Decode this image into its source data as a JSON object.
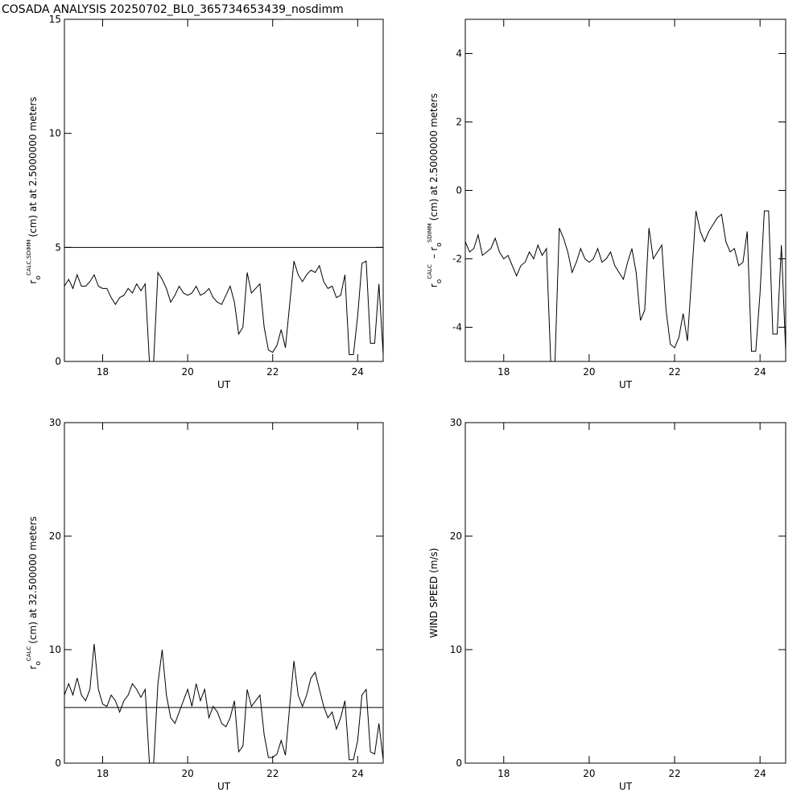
{
  "title": "COSADA ANALYSIS 20250702_BL0_365734653439_nosdimm",
  "chart_data": [
    {
      "type": "line",
      "xlabel": "UT",
      "ylabel": [
        {
          "text": "r"
        },
        {
          "text": "o",
          "style": "sub"
        },
        {
          "text": "CALC,SDIMM",
          "style": "sup"
        },
        {
          "text": "(cm) at  at 2.5000000 meters"
        }
      ],
      "x": [
        17.1,
        17.2,
        17.3,
        17.4,
        17.5,
        17.6,
        17.7,
        17.8,
        17.9,
        18.0,
        18.1,
        18.2,
        18.3,
        18.4,
        18.5,
        18.6,
        18.7,
        18.8,
        18.9,
        19.0,
        19.1,
        19.2,
        19.3,
        19.4,
        19.5,
        19.6,
        19.7,
        19.8,
        19.9,
        20.0,
        20.1,
        20.2,
        20.3,
        20.4,
        20.5,
        20.6,
        20.7,
        20.8,
        20.9,
        21.0,
        21.1,
        21.2,
        21.3,
        21.4,
        21.5,
        21.6,
        21.7,
        21.8,
        21.9,
        22.0,
        22.1,
        22.2,
        22.3,
        22.4,
        22.5,
        22.6,
        22.7,
        22.8,
        22.9,
        23.0,
        23.1,
        23.2,
        23.3,
        23.4,
        23.5,
        23.6,
        23.7,
        23.8,
        23.9,
        24.0,
        24.1,
        24.2,
        24.3,
        24.4,
        24.5,
        24.6
      ],
      "series": [
        {
          "color": "#000000",
          "values": [
            3.3,
            3.6,
            3.2,
            3.8,
            3.3,
            3.3,
            3.5,
            3.8,
            3.3,
            3.2,
            3.2,
            2.8,
            2.5,
            2.8,
            2.9,
            3.2,
            3.0,
            3.4,
            3.1,
            3.4,
            0,
            0,
            3.9,
            3.6,
            3.2,
            2.6,
            2.9,
            3.3,
            3.0,
            2.9,
            3.0,
            3.3,
            2.9,
            3.0,
            3.2,
            2.8,
            2.6,
            2.5,
            2.9,
            3.3,
            2.6,
            1.2,
            1.5,
            3.9,
            3.0,
            3.2,
            3.4,
            1.5,
            0.5,
            0.4,
            0.7,
            1.4,
            0.6,
            2.5,
            4.4,
            3.8,
            3.5,
            3.8,
            4.0,
            3.9,
            4.2,
            3.5,
            3.2,
            3.3,
            2.8,
            2.9,
            3.8,
            0.3,
            0.3,
            2.0,
            4.3,
            4.4,
            0.8,
            0.8,
            3.4,
            0.3
          ]
        }
      ],
      "hline": 5,
      "xlim": [
        17.1,
        24.6
      ],
      "ylim": [
        0,
        15
      ],
      "xticks": [
        18,
        20,
        22,
        24
      ],
      "yticks": [
        0,
        5,
        10,
        15
      ]
    },
    {
      "type": "line",
      "xlabel": "UT",
      "ylabel": [
        {
          "text": "r"
        },
        {
          "text": "o",
          "style": "sub"
        },
        {
          "text": "CALC",
          "style": "sup"
        },
        {
          "text": " – r"
        },
        {
          "text": "o",
          "style": "sub"
        },
        {
          "text": "SDIMM",
          "style": "sup"
        },
        {
          "text": "(cm) at 2.5000000 meters"
        }
      ],
      "x": [
        17.1,
        17.2,
        17.3,
        17.4,
        17.5,
        17.6,
        17.7,
        17.8,
        17.9,
        18.0,
        18.1,
        18.2,
        18.3,
        18.4,
        18.5,
        18.6,
        18.7,
        18.8,
        18.9,
        19.0,
        19.1,
        19.2,
        19.3,
        19.4,
        19.5,
        19.6,
        19.7,
        19.8,
        19.9,
        20.0,
        20.1,
        20.2,
        20.3,
        20.4,
        20.5,
        20.6,
        20.7,
        20.8,
        20.9,
        21.0,
        21.1,
        21.2,
        21.3,
        21.4,
        21.5,
        21.6,
        21.7,
        21.8,
        21.9,
        22.0,
        22.1,
        22.2,
        22.3,
        22.4,
        22.5,
        22.6,
        22.7,
        22.8,
        22.9,
        23.0,
        23.1,
        23.2,
        23.3,
        23.4,
        23.5,
        23.6,
        23.7,
        23.8,
        23.9,
        24.0,
        24.1,
        24.2,
        24.3,
        24.4,
        24.5,
        24.6
      ],
      "series": [
        {
          "color": "#000000",
          "values": [
            -1.5,
            -1.8,
            -1.7,
            -1.3,
            -1.9,
            -1.8,
            -1.7,
            -1.4,
            -1.8,
            -2.0,
            -1.9,
            -2.2,
            -2.5,
            -2.2,
            -2.1,
            -1.8,
            -2.0,
            -1.6,
            -1.9,
            -1.7,
            -5,
            -5,
            -1.1,
            -1.4,
            -1.8,
            -2.4,
            -2.1,
            -1.7,
            -2.0,
            -2.1,
            -2.0,
            -1.7,
            -2.1,
            -2.0,
            -1.8,
            -2.2,
            -2.4,
            -2.6,
            -2.1,
            -1.7,
            -2.4,
            -3.8,
            -3.5,
            -1.1,
            -2.0,
            -1.8,
            -1.6,
            -3.5,
            -4.5,
            -4.6,
            -4.3,
            -3.6,
            -4.4,
            -2.5,
            -0.6,
            -1.2,
            -1.5,
            -1.2,
            -1.0,
            -0.8,
            -0.7,
            -1.5,
            -1.8,
            -1.7,
            -2.2,
            -2.1,
            -1.2,
            -4.7,
            -4.7,
            -3.0,
            -0.6,
            -0.6,
            -4.2,
            -4.2,
            -1.6,
            -4.7
          ]
        }
      ],
      "xlim": [
        17.1,
        24.6
      ],
      "ylim": [
        -5,
        5
      ],
      "xticks": [
        18,
        20,
        22,
        24
      ],
      "yticks": [
        -4,
        -2,
        0,
        2,
        4
      ]
    },
    {
      "type": "line",
      "xlabel": "UT",
      "ylabel": [
        {
          "text": "r"
        },
        {
          "text": "o",
          "style": "sub"
        },
        {
          "text": "CALC",
          "style": "sup"
        },
        {
          "text": "(cm) at 32.500000 meters"
        }
      ],
      "x": [
        17.1,
        17.2,
        17.3,
        17.4,
        17.5,
        17.6,
        17.7,
        17.8,
        17.9,
        18.0,
        18.1,
        18.2,
        18.3,
        18.4,
        18.5,
        18.6,
        18.7,
        18.8,
        18.9,
        19.0,
        19.1,
        19.2,
        19.3,
        19.4,
        19.5,
        19.6,
        19.7,
        19.8,
        19.9,
        20.0,
        20.1,
        20.2,
        20.3,
        20.4,
        20.5,
        20.6,
        20.7,
        20.8,
        20.9,
        21.0,
        21.1,
        21.2,
        21.3,
        21.4,
        21.5,
        21.6,
        21.7,
        21.8,
        21.9,
        22.0,
        22.1,
        22.2,
        22.3,
        22.4,
        22.5,
        22.6,
        22.7,
        22.8,
        22.9,
        23.0,
        23.1,
        23.2,
        23.3,
        23.4,
        23.5,
        23.6,
        23.7,
        23.8,
        23.9,
        24.0,
        24.1,
        24.2,
        24.3,
        24.4,
        24.5,
        24.6
      ],
      "series": [
        {
          "color": "#000000",
          "values": [
            6.0,
            7.0,
            6.0,
            7.5,
            6.0,
            5.5,
            6.5,
            10.5,
            6.5,
            5.2,
            5.0,
            6.0,
            5.5,
            4.5,
            5.5,
            6.0,
            7.0,
            6.5,
            5.8,
            6.5,
            0,
            0,
            7.0,
            10.0,
            6.0,
            4.0,
            3.5,
            4.5,
            5.5,
            6.5,
            5.0,
            7.0,
            5.5,
            6.5,
            4.0,
            5.0,
            4.5,
            3.5,
            3.2,
            4.0,
            5.5,
            1.0,
            1.5,
            6.5,
            5.0,
            5.5,
            6.0,
            2.5,
            0.5,
            0.5,
            0.8,
            2.0,
            0.7,
            5.0,
            9.0,
            6.0,
            5.0,
            6.0,
            7.5,
            8.0,
            6.5,
            5.0,
            4.0,
            4.5,
            3.0,
            4.0,
            5.5,
            0.3,
            0.3,
            2.0,
            6.0,
            6.5,
            1.0,
            0.8,
            3.5,
            0.3
          ]
        }
      ],
      "hline": 4.9,
      "xlim": [
        17.1,
        24.6
      ],
      "ylim": [
        0,
        30
      ],
      "xticks": [
        18,
        20,
        22,
        24
      ],
      "yticks": [
        0,
        10,
        20,
        30
      ]
    },
    {
      "type": "line",
      "xlabel": "UT",
      "ylabel": [
        {
          "text": "WIND SPEED (m/s)"
        }
      ],
      "series": [],
      "xlim": [
        17.1,
        24.6
      ],
      "ylim": [
        0,
        30
      ],
      "xticks": [
        18,
        20,
        22,
        24
      ],
      "yticks": [
        0,
        10,
        20,
        30
      ]
    }
  ]
}
